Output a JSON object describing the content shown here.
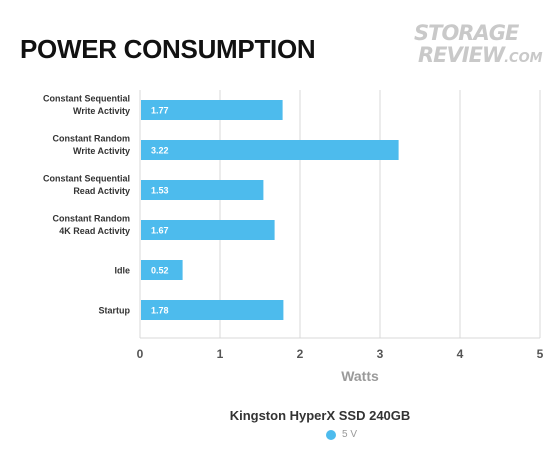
{
  "header": {
    "title": "POWER CONSUMPTION",
    "logo_line1": "STORAGE",
    "logo_line2": "REVIEW",
    "logo_suffix": ".COM"
  },
  "colors": {
    "bar": "#4dbbed",
    "grid": "#d9d9d9",
    "axis_text": "#555555",
    "bar_label": "#ffffff"
  },
  "chart_data": {
    "type": "bar",
    "orientation": "horizontal",
    "title": "POWER CONSUMPTION",
    "categories": [
      [
        "Constant Sequential",
        "Write Activity"
      ],
      [
        "Constant Random",
        "Write Activity"
      ],
      [
        "Constant Sequential",
        "Read Activity"
      ],
      [
        "Constant Random",
        "4K Read Activity"
      ],
      [
        "Idle"
      ],
      [
        "Startup"
      ]
    ],
    "series": [
      {
        "name": "5 V",
        "values": [
          1.77,
          3.22,
          1.53,
          1.67,
          0.52,
          1.78
        ]
      }
    ],
    "data_labels": [
      "1.77",
      "3.22",
      "1.53",
      "1.67",
      "0.52",
      "1.78"
    ],
    "xlabel": "Watts",
    "ylabel": "",
    "xlim": [
      0,
      5
    ],
    "x_ticks": [
      0,
      1,
      2,
      3,
      4,
      5
    ],
    "grid": true,
    "legend": {
      "title": "Kingston HyperX SSD 240GB",
      "placement": "bottom"
    }
  }
}
